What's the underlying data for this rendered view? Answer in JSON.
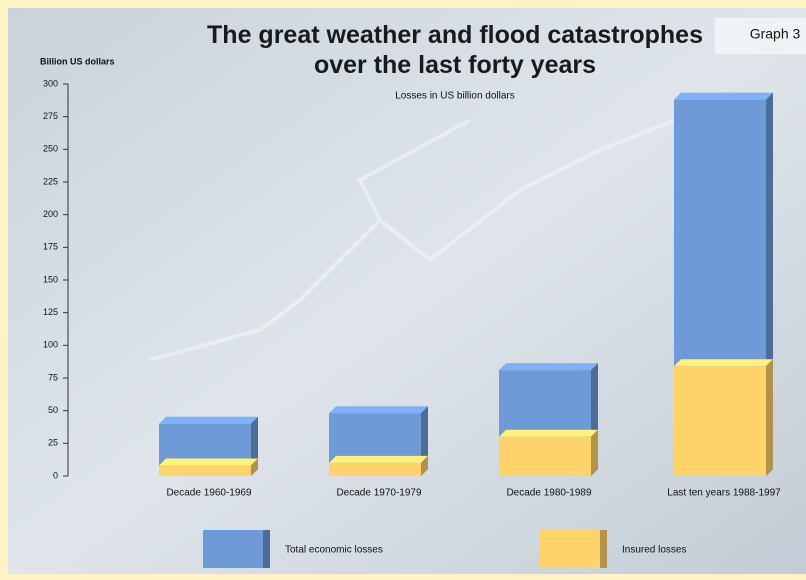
{
  "chart_data": {
    "type": "bar3d",
    "title": "The great weather and flood catastrophes over the last forty years",
    "subtitle": "Losses in US billion dollars",
    "tag": "Graph 3",
    "y_label": "Billion US dollars",
    "categories": [
      "Decade 1960-1969",
      "Decade 1970-1979",
      "Decade 1980-1989",
      "Last ten years 1988-1997"
    ],
    "series": [
      {
        "name": "Total economic losses",
        "color": "#6e9ad8",
        "values": [
          40,
          48,
          81,
          288
        ]
      },
      {
        "name": "Insured losses",
        "color": "#fdd36a",
        "values": [
          8,
          10,
          30,
          84
        ]
      }
    ],
    "ylim": [
      0,
      300
    ],
    "yticks": [
      0,
      25,
      50,
      75,
      100,
      125,
      150,
      175,
      200,
      225,
      250,
      275,
      300
    ]
  }
}
